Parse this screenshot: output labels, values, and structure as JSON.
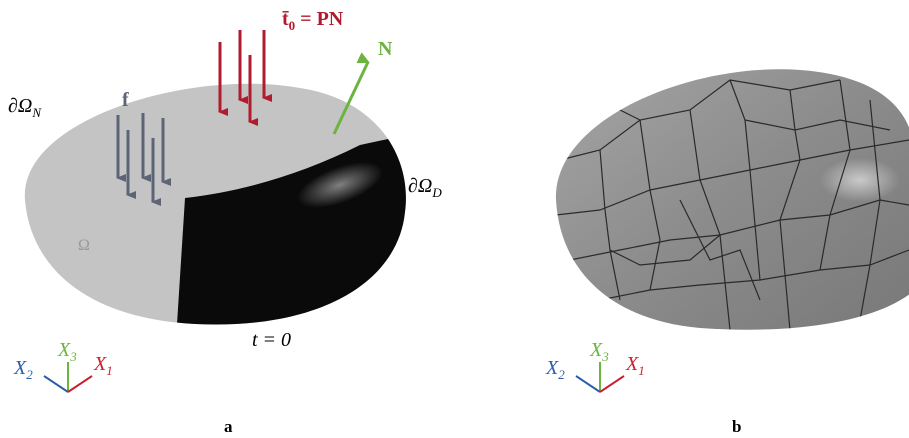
{
  "panel_a": {
    "label": "a",
    "traction": {
      "symbol": "t̄",
      "sub": "0",
      "rest": " = PN"
    },
    "normal": "N",
    "neumann_boundary": {
      "base": "∂Ω",
      "sub": "N"
    },
    "body_force": "f",
    "domain": "Ω",
    "dirichlet_boundary": {
      "base": "∂Ω",
      "sub": "D"
    },
    "time": "t = 0",
    "axes": [
      {
        "base": "X",
        "sub": "2"
      },
      {
        "base": "X",
        "sub": "3"
      },
      {
        "base": "X",
        "sub": "1"
      }
    ]
  },
  "panel_b": {
    "label": "b",
    "axes": [
      {
        "base": "X",
        "sub": "2"
      },
      {
        "base": "X",
        "sub": "3"
      },
      {
        "base": "X",
        "sub": "1"
      }
    ]
  }
}
